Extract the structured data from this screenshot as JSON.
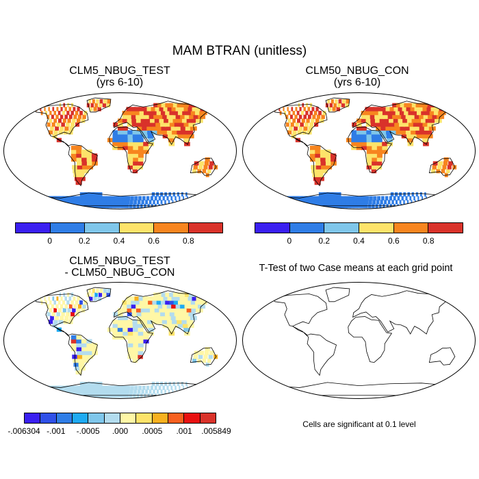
{
  "figure_title": "MAM BTRAN (unitless)",
  "panels": {
    "top_left": {
      "title_line1": "CLM5_NBUG_TEST",
      "title_line2": "(yrs 6-10)"
    },
    "top_right": {
      "title_line1": "CLM50_NBUG_CON",
      "title_line2": "(yrs 6-10)"
    },
    "bottom_left": {
      "title_line1": "CLM5_NBUG_TEST",
      "title_line2": "- CLM50_NBUG_CON"
    },
    "bottom_right": {
      "title": "T-Test of two Case means at each grid point",
      "note": "Cells are significant at 0.1 level"
    }
  },
  "colorbar_main": {
    "colors": [
      "#3a1ff0",
      "#2f7de6",
      "#7fc6ea",
      "#fde36a",
      "#f7851f",
      "#d9322a"
    ],
    "labels": [
      "0",
      "0.2",
      "0.4",
      "0.6",
      "0.8"
    ]
  },
  "colorbar_diff": {
    "colors": [
      "#3a1ff0",
      "#2f50e8",
      "#2f7de6",
      "#1eaaf2",
      "#7fc6ea",
      "#b3dcee",
      "#fff7a6",
      "#fde36a",
      "#f8b11f",
      "#f7601f",
      "#e81010",
      "#d9322a"
    ],
    "labels": [
      "-.006304",
      "-.001",
      "-.0005",
      ".000",
      ".0005",
      ".001",
      ".005849"
    ]
  }
}
